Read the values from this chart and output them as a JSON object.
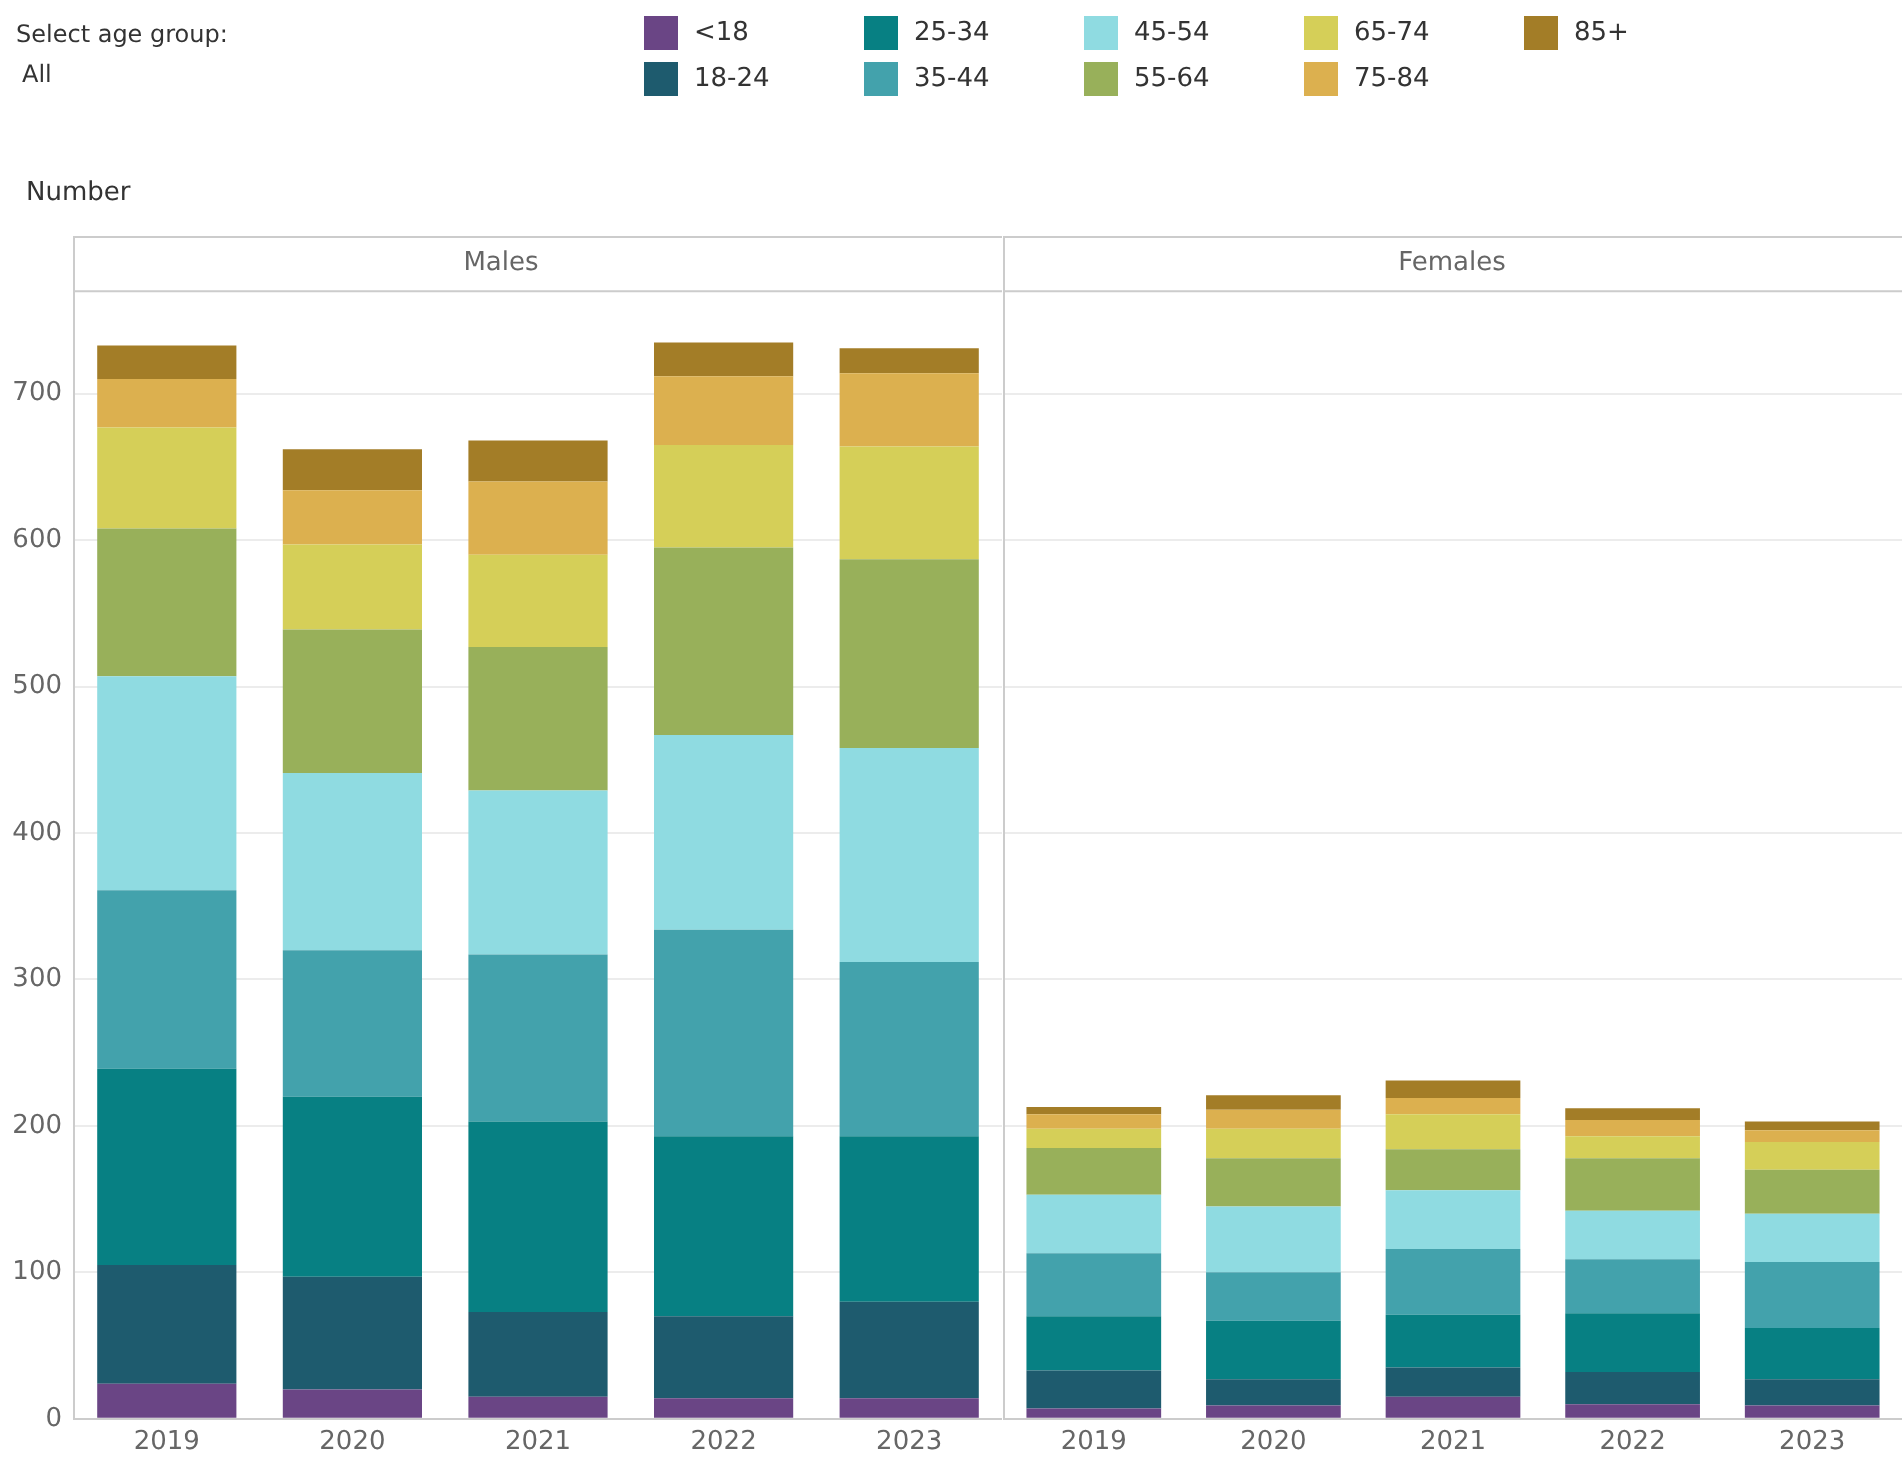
{
  "chart_data": [
    {
      "type": "bar",
      "title": "Males",
      "ylabel": "Number",
      "annotations": [
        "Select age group:",
        "All"
      ],
      "stacked": true,
      "legend": "top",
      "grid": "y",
      "categories": [
        "2019",
        "2020",
        "2021",
        "2022",
        "2023"
      ],
      "ylim": [
        0,
        770
      ],
      "yticks": [
        0,
        100,
        200,
        300,
        400,
        500,
        600,
        700
      ],
      "series": [
        {
          "name": "<18",
          "color": "#6a4585",
          "values": [
            24,
            20,
            15,
            14,
            14
          ]
        },
        {
          "name": "18-24",
          "color": "#1e5b6e",
          "values": [
            81,
            77,
            58,
            56,
            66
          ]
        },
        {
          "name": "25-34",
          "color": "#078083",
          "values": [
            134,
            123,
            130,
            123,
            113
          ]
        },
        {
          "name": "35-44",
          "color": "#43a2ac",
          "values": [
            122,
            100,
            114,
            141,
            119
          ]
        },
        {
          "name": "45-54",
          "color": "#8fdbe1",
          "values": [
            146,
            121,
            112,
            133,
            146
          ]
        },
        {
          "name": "55-64",
          "color": "#98b05a",
          "values": [
            101,
            98,
            98,
            128,
            129
          ]
        },
        {
          "name": "65-74",
          "color": "#d5cf58",
          "values": [
            69,
            58,
            63,
            70,
            77
          ]
        },
        {
          "name": "75-84",
          "color": "#dcb04f",
          "values": [
            33,
            37,
            50,
            47,
            50
          ]
        },
        {
          "name": "85+",
          "color": "#a37d27",
          "values": [
            23,
            28,
            28,
            23,
            17
          ]
        }
      ]
    },
    {
      "type": "bar",
      "title": "Females",
      "stacked": true,
      "grid": "y",
      "tick_labels": "x",
      "categories": [
        "2019",
        "2020",
        "2021",
        "2022",
        "2023"
      ],
      "ylim": [
        0,
        770
      ],
      "yticks": [
        0,
        100,
        200,
        300,
        400,
        500,
        600,
        700
      ],
      "series": [
        {
          "color": "#6a4585",
          "values": [
            7,
            9,
            15,
            10,
            9
          ]
        },
        {
          "color": "#1e5b6e",
          "values": [
            26,
            18,
            20,
            22,
            18
          ]
        },
        {
          "color": "#078083",
          "values": [
            37,
            40,
            36,
            40,
            35
          ]
        },
        {
          "color": "#43a2ac",
          "values": [
            43,
            33,
            45,
            37,
            45
          ]
        },
        {
          "color": "#8fdbe1",
          "values": [
            40,
            45,
            40,
            33,
            33
          ]
        },
        {
          "color": "#98b05a",
          "values": [
            32,
            33,
            28,
            36,
            30
          ]
        },
        {
          "color": "#d5cf58",
          "values": [
            13,
            20,
            24,
            15,
            19
          ]
        },
        {
          "color": "#dcb04f",
          "values": [
            10,
            13,
            11,
            11,
            8
          ]
        },
        {
          "color": "#a37d27",
          "values": [
            5,
            10,
            12,
            8,
            6
          ]
        }
      ]
    }
  ]
}
